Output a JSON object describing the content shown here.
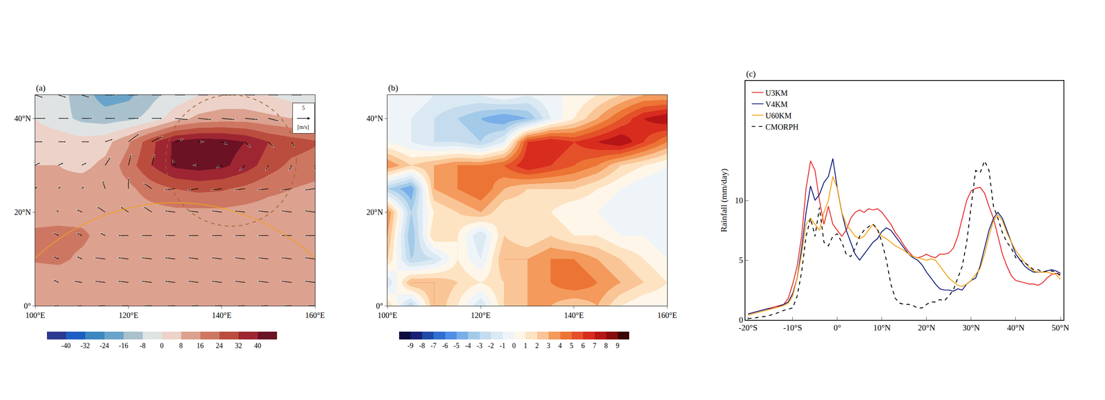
{
  "chart_data": [
    {
      "type": "heatmap",
      "panel_label": "(a)",
      "x": [
        100,
        105,
        110,
        115,
        120,
        125,
        130,
        135,
        140,
        145,
        150,
        155,
        160
      ],
      "y": [
        0,
        5,
        10,
        15,
        20,
        25,
        30,
        35,
        40,
        45
      ],
      "z": [
        [
          10,
          10,
          10,
          10,
          10,
          10,
          10,
          10,
          10,
          10,
          10,
          10,
          10
        ],
        [
          10,
          10,
          10,
          10,
          10,
          10,
          10,
          10,
          10,
          10,
          10,
          10,
          10
        ],
        [
          17,
          18,
          14,
          11,
          11,
          11,
          11,
          11,
          11,
          11,
          11,
          11,
          11
        ],
        [
          18,
          19,
          18,
          12,
          11,
          11,
          12,
          12,
          12,
          12,
          12,
          12,
          12
        ],
        [
          12,
          12,
          12,
          12,
          12,
          13,
          14,
          14,
          14,
          13,
          12,
          12,
          12
        ],
        [
          10,
          10,
          12,
          12,
          14,
          20,
          24,
          26,
          25,
          22,
          18,
          16,
          14
        ],
        [
          8,
          8,
          6,
          10,
          20,
          32,
          42,
          44,
          42,
          36,
          28,
          22,
          20
        ],
        [
          5,
          5,
          3,
          5,
          15,
          30,
          42,
          45,
          44,
          40,
          32,
          28,
          25
        ],
        [
          0,
          -5,
          -10,
          -12,
          -10,
          -5,
          5,
          10,
          12,
          12,
          10,
          8,
          8
        ],
        [
          -3,
          -5,
          -12,
          -20,
          -18,
          -10,
          -5,
          0,
          2,
          2,
          0,
          -3,
          -5
        ]
      ],
      "colors": [
        "#2b3990",
        "#1e5ec4",
        "#3b87c0",
        "#6aa3c9",
        "#a9c1cd",
        "#e0e3e3",
        "#edd2c9",
        "#dca18f",
        "#cd7763",
        "#ba4d3d",
        "#9e2632",
        "#6b1224"
      ],
      "colorbar_lim": [
        -48,
        48
      ],
      "colorbar_ticks": [
        -40,
        -32,
        -24,
        -16,
        -8,
        0,
        8,
        16,
        24,
        32,
        40
      ],
      "vectors": {
        "u": [
          [
            -2,
            -2,
            -2,
            -3,
            -3,
            -3,
            -3,
            -3,
            -3,
            -3,
            -3,
            -3,
            -3
          ],
          [
            -2,
            -2,
            -3,
            -4,
            -4,
            -4,
            -4,
            -4,
            -4,
            -4,
            -4,
            -4,
            -4
          ],
          [
            -2,
            -2,
            -2,
            -4,
            -4,
            -4,
            -4,
            -4,
            -4,
            -4,
            -4,
            -4,
            -4
          ],
          [
            -2,
            -2,
            -2,
            -2,
            -4,
            -4,
            -4,
            -4,
            -4,
            -4,
            -4,
            -4,
            -4
          ],
          [
            -1,
            -1,
            -2,
            -3,
            -3,
            -3,
            -4,
            -4,
            -4,
            -4,
            -4,
            -4,
            -4
          ],
          [
            1,
            1,
            1,
            -1,
            0,
            -3,
            -4,
            -4,
            -4,
            -4,
            -4,
            -4,
            -4
          ],
          [
            2,
            2,
            2,
            2,
            1,
            1,
            -1,
            -2,
            -2,
            -2,
            -1,
            -1,
            0
          ],
          [
            3,
            3,
            3,
            3,
            4,
            4,
            3,
            2,
            2,
            2,
            2,
            1,
            1
          ],
          [
            4,
            4,
            4,
            4,
            4,
            4,
            5,
            5,
            5,
            5,
            4,
            4,
            4
          ],
          [
            3,
            3,
            3,
            4,
            4,
            4,
            4,
            4,
            4,
            4,
            4,
            4,
            4
          ]
        ],
        "v": [
          [
            0,
            0,
            0,
            0,
            0,
            0,
            0,
            0,
            0,
            0,
            0,
            0,
            0
          ],
          [
            1,
            1,
            0.5,
            0.5,
            0.5,
            0.5,
            0.5,
            0.5,
            0.5,
            0.5,
            0.5,
            0.5,
            0.5
          ],
          [
            1,
            1,
            1,
            0.5,
            0.5,
            0.5,
            0.5,
            0.5,
            0.5,
            0.5,
            0.5,
            0.5,
            0.5
          ],
          [
            1,
            1,
            1,
            1,
            0,
            0,
            0,
            0,
            0,
            0,
            0,
            0,
            0
          ],
          [
            1,
            1,
            1,
            2,
            2,
            2,
            0.5,
            0.5,
            0.5,
            0.5,
            0.5,
            0.5,
            0.5
          ],
          [
            1,
            1,
            1,
            3,
            4,
            2,
            -0.5,
            -0.5,
            -0.5,
            -0.5,
            -0.5,
            -0.5,
            -0.5
          ],
          [
            1,
            1,
            1,
            3,
            4,
            4,
            2,
            0,
            -1,
            -2,
            -2,
            -2,
            -2
          ],
          [
            0,
            0,
            0,
            1,
            3,
            2,
            1,
            0,
            -1,
            -2,
            -2,
            -2,
            -2
          ],
          [
            0,
            0,
            0,
            0,
            0,
            0,
            -0.5,
            -0.5,
            -0.5,
            -0.5,
            -1,
            -1,
            -1
          ],
          [
            -1,
            -1,
            -1,
            0,
            0,
            0,
            0,
            0,
            0,
            0,
            0,
            0,
            0
          ]
        ],
        "reference": 5,
        "reference_label": "[m/s]"
      },
      "circles": [
        {
          "center": [
            142,
            31
          ],
          "radius": 14,
          "color": "#a0642a",
          "line_style": "dash"
        },
        {
          "center": [
            130,
            -22
          ],
          "radius": 44,
          "color": "#f0a020",
          "line_style": "solid"
        }
      ],
      "xlim": [
        100,
        160
      ],
      "ylim": [
        0,
        45
      ],
      "xticks": [
        {
          "value": 100,
          "label": "100°E"
        },
        {
          "value": 120,
          "label": "120°E"
        },
        {
          "value": 140,
          "label": "140°E"
        },
        {
          "value": 160,
          "label": "160°E"
        }
      ],
      "yticks": [
        {
          "value": 0,
          "label": "0°"
        },
        {
          "value": 20,
          "label": "20°N"
        },
        {
          "value": 40,
          "label": "40°N"
        }
      ],
      "grid": true
    },
    {
      "type": "heatmap",
      "panel_label": "(b)",
      "x": [
        100,
        105,
        110,
        115,
        120,
        125,
        130,
        135,
        140,
        145,
        150,
        155,
        160
      ],
      "y": [
        0,
        5,
        10,
        15,
        20,
        25,
        30,
        35,
        40,
        45
      ],
      "z": [
        [
          2,
          -3,
          3,
          1,
          -2,
          2,
          3,
          3,
          2,
          3,
          1,
          0,
          0
        ],
        [
          -2,
          3,
          3,
          2,
          1,
          2,
          3,
          4,
          5,
          4,
          3,
          2,
          1
        ],
        [
          2,
          -3,
          -2,
          1,
          -1,
          3,
          3,
          4,
          4,
          3,
          2,
          1,
          0
        ],
        [
          3,
          -4,
          2,
          1,
          -2,
          2,
          1,
          2,
          1,
          1,
          0,
          0,
          -1
        ],
        [
          4,
          -3,
          1,
          2,
          3,
          1,
          1,
          1,
          0,
          0,
          -1,
          -1,
          -1
        ],
        [
          -3,
          -5,
          3,
          4,
          5,
          3,
          2,
          2,
          2,
          1,
          0,
          -1,
          -1
        ],
        [
          4,
          2,
          3,
          4,
          4,
          5,
          7,
          6,
          5,
          4,
          2,
          1,
          0
        ],
        [
          0,
          -1,
          -2,
          -2,
          -3,
          -1,
          6,
          7,
          6,
          7,
          8,
          6,
          4
        ],
        [
          -1,
          -1,
          -2,
          -3,
          -4,
          -5,
          -4,
          -1,
          1,
          3,
          5,
          7,
          8
        ],
        [
          0,
          0,
          -1,
          -1,
          -1,
          0,
          -1,
          0,
          0,
          1,
          2,
          3,
          3
        ]
      ],
      "colors": [
        "#0b0b3d",
        "#1a1f73",
        "#1f4aa8",
        "#2f6fd0",
        "#4f8fe6",
        "#79aee8",
        "#a3cbe9",
        "#c4dcee",
        "#dbe9f3",
        "#eef4f8",
        "#fdf6e9",
        "#fde3c2",
        "#fac596",
        "#f39a5c",
        "#ec7434",
        "#e4502a",
        "#d82c1e",
        "#b71515",
        "#8a0b0b",
        "#3a0505"
      ],
      "colorbar_lim": [
        -10,
        10
      ],
      "colorbar_ticks": [
        -9,
        -8,
        -7,
        -6,
        -5,
        -4,
        -3,
        -2,
        -1,
        0,
        1,
        2,
        3,
        4,
        5,
        6,
        7,
        8,
        9
      ],
      "xlim": [
        100,
        160
      ],
      "ylim": [
        0,
        45
      ],
      "xticks": [
        {
          "value": 100,
          "label": "100°E"
        },
        {
          "value": 120,
          "label": "120°E"
        },
        {
          "value": 140,
          "label": "140°E"
        },
        {
          "value": 160,
          "label": "160°E"
        }
      ],
      "yticks": [
        {
          "value": 0,
          "label": "0°"
        },
        {
          "value": 20,
          "label": "20°N"
        },
        {
          "value": 40,
          "label": "40°N"
        }
      ],
      "grid": true
    },
    {
      "type": "line",
      "panel_label": "(c)",
      "ylabel": "Rainfall (mm/day)",
      "x": [
        -20,
        -18,
        -16,
        -14,
        -12,
        -11,
        -10,
        -9,
        -8,
        -7,
        -6,
        -5,
        -4,
        -3,
        -2,
        -1,
        0,
        1,
        2,
        3,
        4,
        5,
        6,
        7,
        8,
        9,
        10,
        11,
        12,
        13,
        14,
        15,
        16,
        17,
        18,
        19,
        20,
        21,
        22,
        23,
        24,
        25,
        26,
        27,
        28,
        29,
        30,
        31,
        32,
        33,
        34,
        35,
        36,
        37,
        38,
        39,
        40,
        41,
        42,
        43,
        44,
        45,
        46,
        47,
        48,
        49,
        50
      ],
      "series": [
        {
          "name": "U3KM",
          "color": "#e8262a",
          "line_style": "solid",
          "values": [
            0.5,
            0.7,
            0.9,
            1.1,
            1.3,
            1.8,
            3,
            4.5,
            7,
            11,
            13.3,
            12.5,
            10,
            8,
            9.5,
            8,
            7.5,
            7,
            7.5,
            8.5,
            9,
            9.2,
            9,
            9.3,
            9.2,
            9.3,
            9,
            8.5,
            8,
            7.3,
            6.8,
            6.2,
            5.7,
            5.3,
            5.2,
            5.3,
            5.5,
            5.3,
            5.2,
            5.5,
            5.5,
            5.6,
            6,
            7,
            8.5,
            10,
            10.8,
            11,
            11.1,
            10.6,
            9.5,
            8.5,
            7,
            5.5,
            4.5,
            3.7,
            3.3,
            3.2,
            3.1,
            3.0,
            3.0,
            2.9,
            3.1,
            3.5,
            3.8,
            3.9,
            3.8
          ]
        },
        {
          "name": "V4KM",
          "color": "#0c1a7a",
          "line_style": "solid",
          "values": [
            0.5,
            0.7,
            0.9,
            1.0,
            1.3,
            1.5,
            2.2,
            3.5,
            6,
            9,
            11.2,
            10,
            10.5,
            11.5,
            12,
            13.5,
            11,
            9,
            7.5,
            6.5,
            5.5,
            5,
            5.5,
            6,
            6.5,
            6.8,
            7.4,
            7.7,
            7.5,
            7,
            6.5,
            6,
            5.5,
            5.2,
            5,
            4.6,
            4,
            3.5,
            3.0,
            2.6,
            2.5,
            2.5,
            2.4,
            2.6,
            2.5,
            3,
            3.3,
            3.5,
            4.5,
            6,
            7.5,
            8.5,
            9,
            8.5,
            7.5,
            6.5,
            5.5,
            5,
            4.5,
            4.2,
            4,
            4,
            4,
            4.1,
            4.2,
            4.1,
            3.9
          ]
        },
        {
          "name": "U60KM",
          "color": "#f5a00f",
          "line_style": "solid",
          "values": [
            0.4,
            0.6,
            0.8,
            1.0,
            1.2,
            1.4,
            2,
            3.5,
            5.5,
            8,
            8.5,
            8,
            7.5,
            9,
            10,
            12,
            11,
            9,
            8,
            7.5,
            7,
            6.8,
            7,
            7.5,
            8,
            7.5,
            7,
            6.8,
            6.5,
            6.2,
            6,
            5.8,
            5.5,
            5.3,
            5.2,
            5.1,
            5,
            5.1,
            5,
            4.5,
            4,
            3.5,
            3.2,
            2.9,
            2.8,
            3.0,
            3.3,
            3.8,
            4.3,
            5.5,
            7,
            8.3,
            8.8,
            8.3,
            7.3,
            6.5,
            5.8,
            5.3,
            4.8,
            4.4,
            4.1,
            4.0,
            4.0,
            4.0,
            3.9,
            3.8,
            3.4
          ]
        },
        {
          "name": "CMORPH",
          "color": "#000000",
          "line_style": "dash",
          "values": [
            0.1,
            0.2,
            0.3,
            0.5,
            0.8,
            0.9,
            1.0,
            2,
            4,
            7,
            8.5,
            7,
            9.4,
            6.5,
            6.2,
            7,
            7.2,
            6.5,
            5.5,
            5.3,
            6,
            7,
            7.5,
            7.8,
            8,
            7.6,
            6.5,
            5,
            3,
            1.8,
            1.4,
            1.3,
            1.3,
            1.2,
            1.0,
            1.0,
            1.3,
            1.5,
            1.5,
            1.7,
            1.6,
            2.0,
            2.5,
            3.5,
            4.5,
            6.5,
            9.5,
            12.5,
            12.3,
            13.3,
            12.5,
            9.5,
            8.5,
            7.3,
            6.5,
            6,
            5.2,
            5,
            4.8,
            4.5,
            4.2,
            4.2,
            4,
            4.1,
            4.1,
            4,
            3.7
          ]
        }
      ],
      "xlim": [
        -20.6,
        50.7
      ],
      "ylim": [
        0,
        20
      ],
      "xticks": [
        {
          "value": -20,
          "label": "-20°S"
        },
        {
          "value": -10,
          "label": "-10°S"
        },
        {
          "value": 0,
          "label": "0°"
        },
        {
          "value": 10,
          "label": "10°N"
        },
        {
          "value": 20,
          "label": "20°N"
        },
        {
          "value": 30,
          "label": "30°N"
        },
        {
          "value": 40,
          "label": "40°N"
        },
        {
          "value": 50,
          "label": "50°N"
        }
      ],
      "yticks": [
        0,
        5,
        10
      ],
      "legend": "top-left",
      "grid": false
    }
  ]
}
